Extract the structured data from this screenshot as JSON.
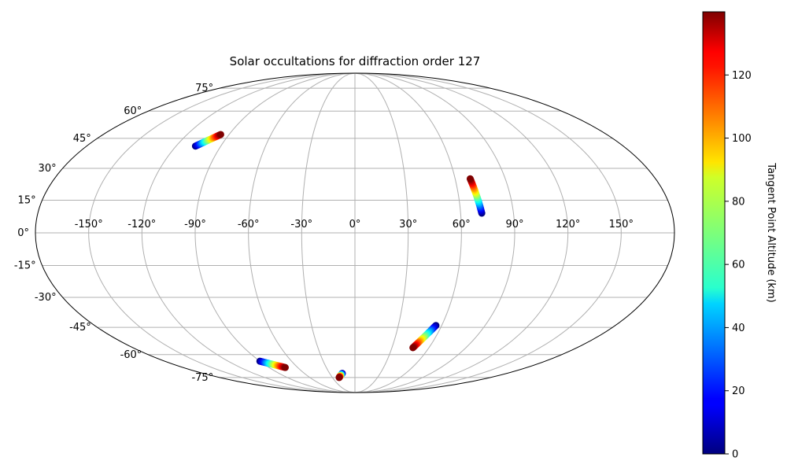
{
  "chart_data": {
    "type": "scatter",
    "projection": "mollweide",
    "title": "Solar occultations for diffraction order 127",
    "grid": true,
    "longitude_ticks": [
      -150,
      -120,
      -90,
      -60,
      -30,
      0,
      30,
      60,
      90,
      120,
      150
    ],
    "latitude_ticks": [
      -75,
      -60,
      -45,
      -30,
      -15,
      0,
      15,
      30,
      45,
      60,
      75
    ],
    "longitude_tick_labels": [
      "-150°",
      "-120°",
      "-90°",
      "-60°",
      "-30°",
      "0°",
      "30°",
      "60°",
      "90°",
      "120°",
      "150°"
    ],
    "latitude_tick_labels": [
      "-75°",
      "-60°",
      "-45°",
      "-30°",
      "-15°",
      "0°",
      "15°",
      "30°",
      "45°",
      "60°",
      "75°"
    ],
    "colorbar": {
      "label": "Tangent Point Altitude (km)",
      "colormap": "jet",
      "range": [
        0,
        140
      ],
      "ticks": [
        0,
        20,
        40,
        60,
        80,
        100,
        120
      ],
      "tick_labels": [
        "0",
        "20",
        "40",
        "60",
        "80",
        "100",
        "120"
      ]
    },
    "series": [
      {
        "lon_start": -107,
        "lat_start": 41,
        "alt_start": 0,
        "lon_end": -96,
        "lat_end": 47,
        "alt_end": 140
      },
      {
        "lon_start": 72,
        "lat_start": 9,
        "alt_start": 0,
        "lon_end": 69,
        "lat_end": 25,
        "alt_end": 140
      },
      {
        "lon_start": 56,
        "lat_start": -44,
        "alt_start": 0,
        "lon_end": 47,
        "lat_end": -56,
        "alt_end": 140
      },
      {
        "lon_start": -90,
        "lat_start": -64,
        "alt_start": 0,
        "lon_end": -73,
        "lat_end": -68,
        "alt_end": 140
      },
      {
        "lon_start": -15,
        "lat_start": -72,
        "alt_start": 0,
        "lon_end": -21,
        "lat_end": -75,
        "alt_end": 140
      }
    ]
  }
}
